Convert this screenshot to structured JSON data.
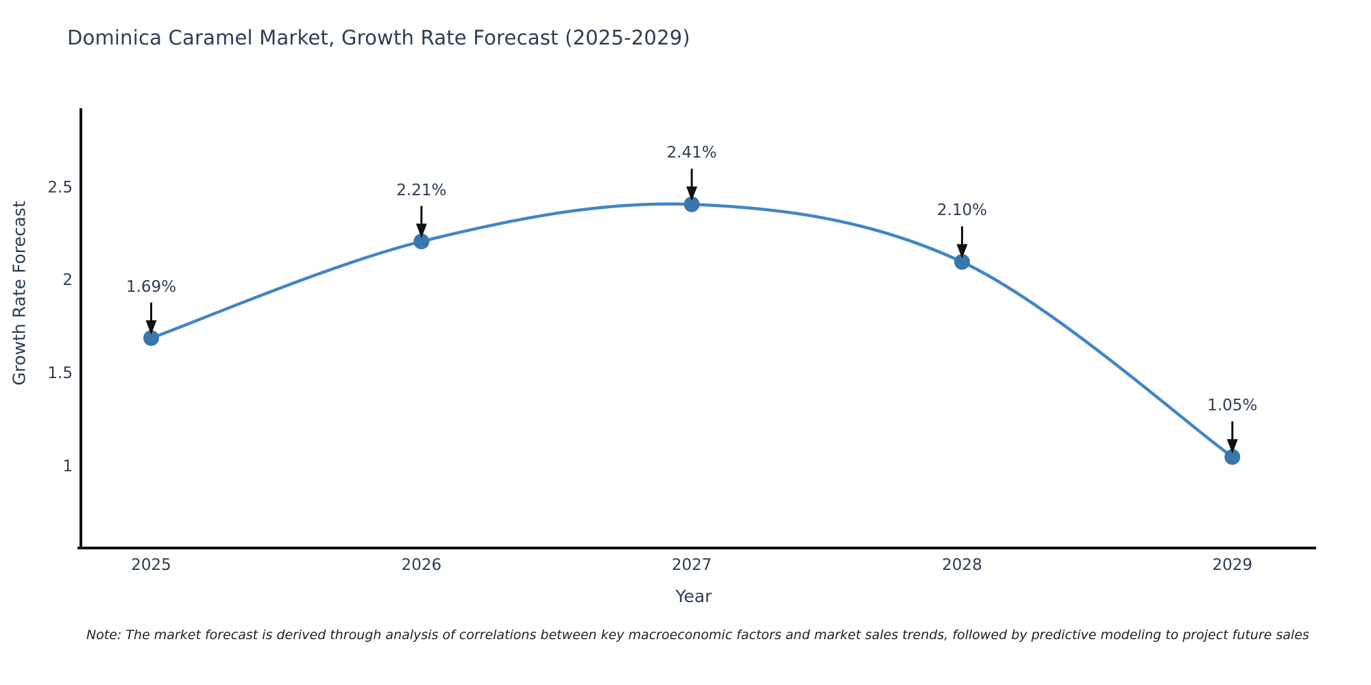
{
  "chart_data": {
    "type": "line",
    "title": "Dominica Caramel Market, Growth Rate Forecast (2025-2029)",
    "xlabel": "Year",
    "ylabel": "Growth Rate Forecast",
    "x": [
      2025,
      2026,
      2027,
      2028,
      2029
    ],
    "series": [
      {
        "name": "Growth Rate Forecast",
        "values": [
          1.69,
          2.21,
          2.41,
          2.1,
          1.05
        ]
      }
    ],
    "point_labels": [
      "1.69%",
      "2.21%",
      "2.41%",
      "2.10%",
      "1.05%"
    ],
    "x_tick_labels": [
      "2025",
      "2026",
      "2027",
      "2028",
      "2029"
    ],
    "y_ticks": [
      1,
      1.5,
      2,
      2.5
    ],
    "y_tick_labels": [
      "1",
      "1.5",
      "2",
      "2.5"
    ],
    "xlim": [
      2024.74,
      2029.31
    ],
    "ylim": [
      0.56,
      2.92
    ],
    "grid": false,
    "legend_position": "none",
    "colors": {
      "line": "#4186c5",
      "marker": "#3a76ae",
      "axis": "#111111",
      "text": "#2e3d53",
      "arrow": "#111111",
      "background": "#ffffff"
    }
  },
  "note": "Note: The market forecast is derived through analysis of correlations between key macroeconomic factors and market sales trends, followed by predictive modeling to project future sales"
}
